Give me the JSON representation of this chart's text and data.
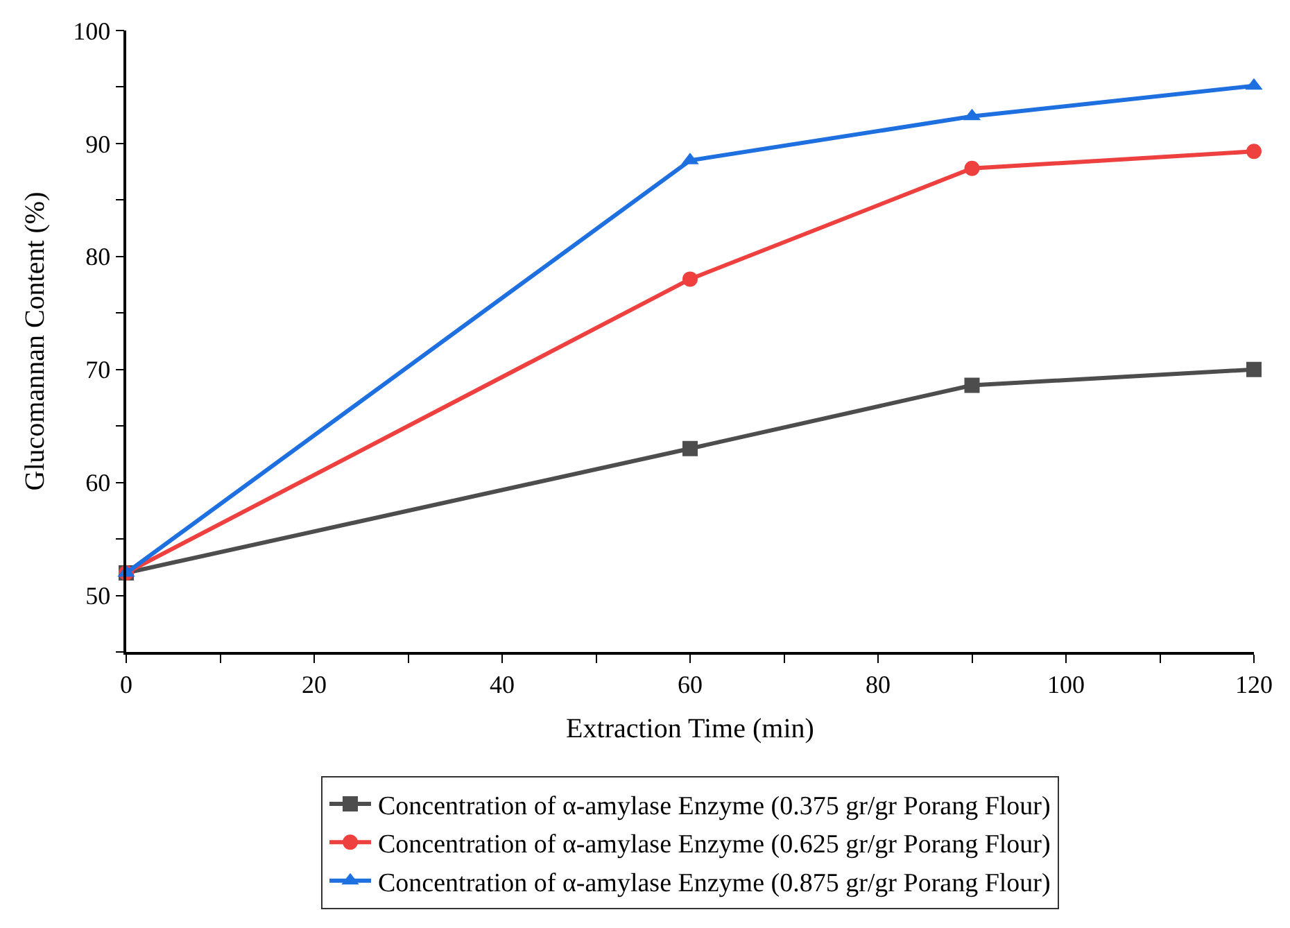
{
  "chart_data": {
    "type": "line",
    "xlabel": "Extraction Time (min)",
    "ylabel": "Glucomannan Content (%)",
    "x": [
      0,
      60,
      90,
      120
    ],
    "series": [
      {
        "name": "Concentration of α-amylase Enzyme (0.375 gr/gr Porang Flour)",
        "color": "#4d4d4d",
        "marker": "square",
        "values": [
          52.0,
          63.0,
          68.6,
          70.0
        ]
      },
      {
        "name": "Concentration of α-amylase Enzyme (0.625 gr/gr Porang Flour)",
        "color": "#ef4040",
        "marker": "circle",
        "values": [
          52.0,
          78.0,
          87.8,
          89.3
        ]
      },
      {
        "name": "Concentration of α-amylase Enzyme (0.875 gr/gr Porang Flour)",
        "color": "#1e6fe0",
        "marker": "triangle",
        "values": [
          52.0,
          88.5,
          92.4,
          95.1
        ]
      }
    ],
    "xlim": [
      0,
      120
    ],
    "xticks": [
      0,
      {
        "value": 10,
        "label": null
      },
      20,
      {
        "value": 30,
        "label": null
      },
      40,
      {
        "value": 50,
        "label": null
      },
      60,
      {
        "value": 70,
        "label": null
      },
      80,
      {
        "value": 90,
        "label": null
      },
      100,
      {
        "value": 110,
        "label": null
      },
      120
    ],
    "ylim": [
      45,
      100
    ],
    "yticks": [
      {
        "value": 45,
        "label": null
      },
      50,
      {
        "value": 55,
        "label": null
      },
      60,
      {
        "value": 65,
        "label": null
      },
      70,
      {
        "value": 75,
        "label": null
      },
      80,
      {
        "value": 85,
        "label": null
      },
      90,
      {
        "value": 95,
        "label": null
      },
      100
    ],
    "legend": "bottom",
    "line_style": "solid"
  }
}
